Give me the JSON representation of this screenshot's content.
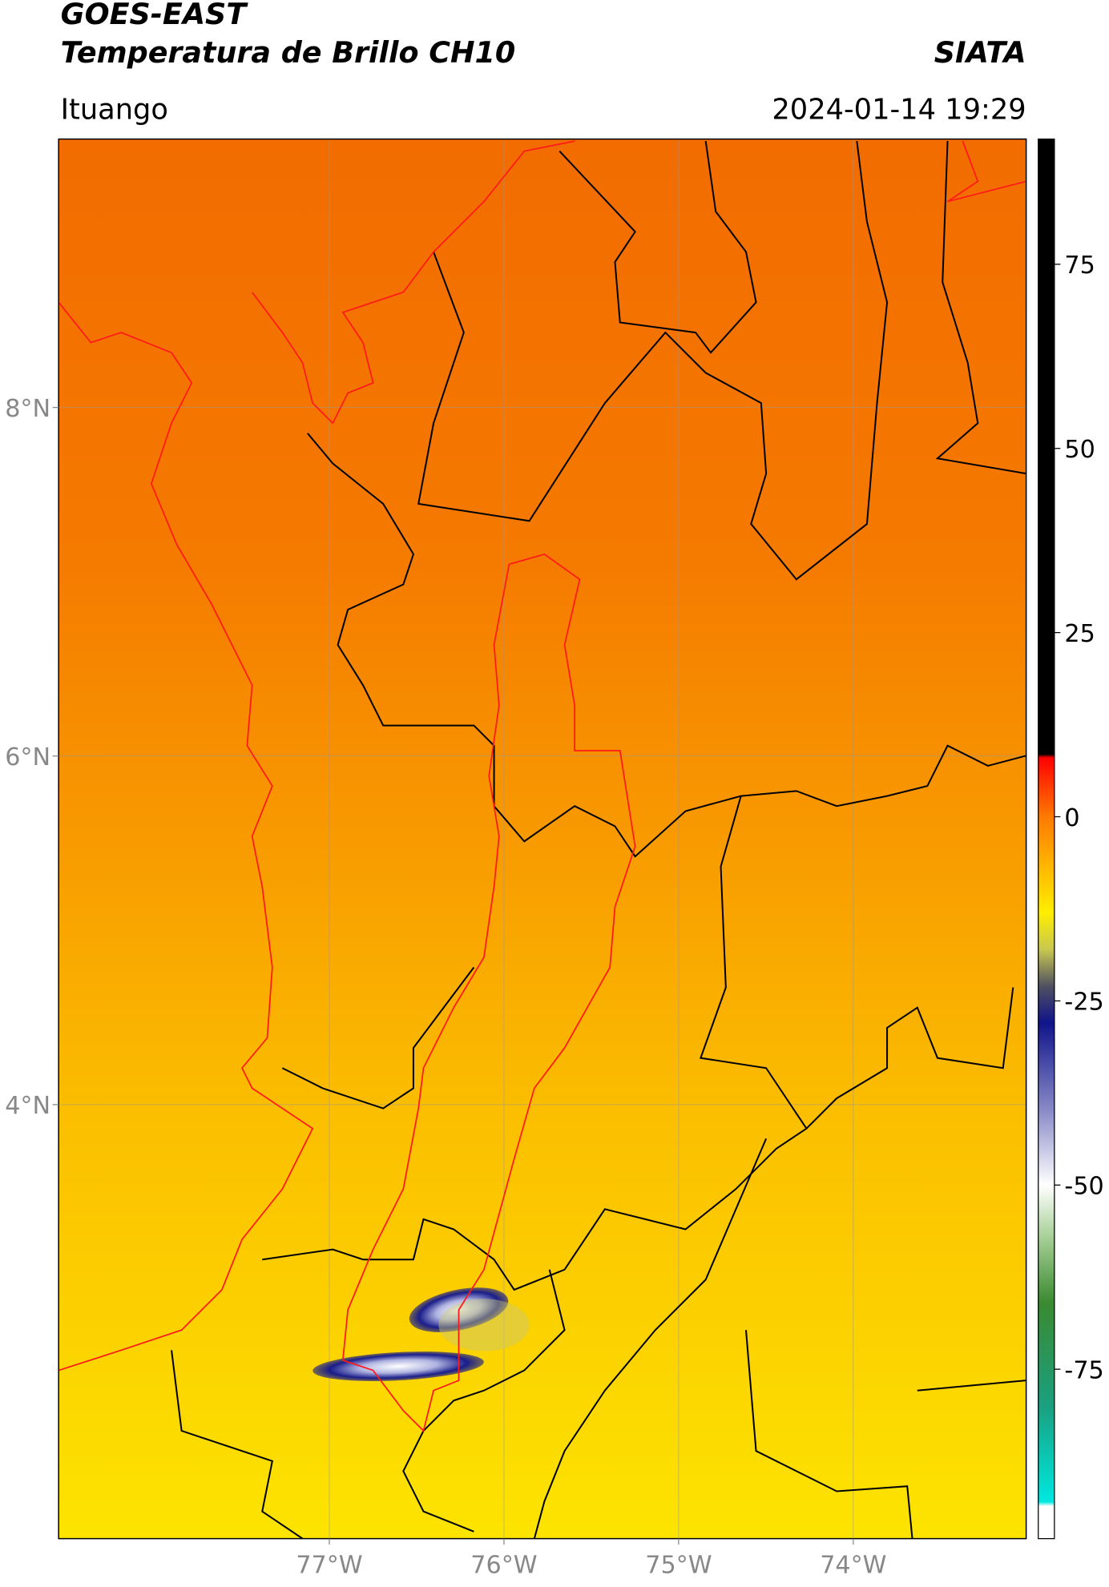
{
  "chart_data": {
    "type": "map",
    "title": "GOES-EAST",
    "subtitle": "Temperatura de Brillo CH10",
    "source": "SIATA",
    "location": "Ituango",
    "datetime": "2024-01-14 19:29",
    "xlim": [
      -78.55,
      -73.01
    ],
    "ylim": [
      1.51,
      9.54
    ],
    "xticks": [
      {
        "value": -77,
        "label": "77°W"
      },
      {
        "value": -76,
        "label": "76°W"
      },
      {
        "value": -75,
        "label": "75°W"
      },
      {
        "value": -74,
        "label": "74°W"
      }
    ],
    "yticks": [
      {
        "value": 4,
        "label": "4°N"
      },
      {
        "value": 6,
        "label": "6°N"
      },
      {
        "value": 8,
        "label": "8°N"
      }
    ],
    "grid": true,
    "colorbar": {
      "lim": [
        -98,
        92
      ],
      "ticks": [
        -75,
        -50,
        -25,
        0,
        25,
        50,
        75
      ],
      "stops": [
        {
          "value": 92,
          "color": "#000000"
        },
        {
          "value": 8.5,
          "color": "#000000"
        },
        {
          "value": 8,
          "color": "#ff0000"
        },
        {
          "value": 0,
          "color": "#ff7a00"
        },
        {
          "value": -13,
          "color": "#ffee00"
        },
        {
          "value": -18,
          "color": "#c8c850"
        },
        {
          "value": -23,
          "color": "#505060"
        },
        {
          "value": -28,
          "color": "#10148a"
        },
        {
          "value": -40,
          "color": "#8a8cc8"
        },
        {
          "value": -50,
          "color": "#ffffff"
        },
        {
          "value": -57,
          "color": "#a8d098"
        },
        {
          "value": -66,
          "color": "#3a8a30"
        },
        {
          "value": -80,
          "color": "#1aa080"
        },
        {
          "value": -93,
          "color": "#00e8e0"
        },
        {
          "value": -93.6,
          "color": "#ffffff"
        },
        {
          "value": -98,
          "color": "#ffffff"
        }
      ]
    }
  }
}
